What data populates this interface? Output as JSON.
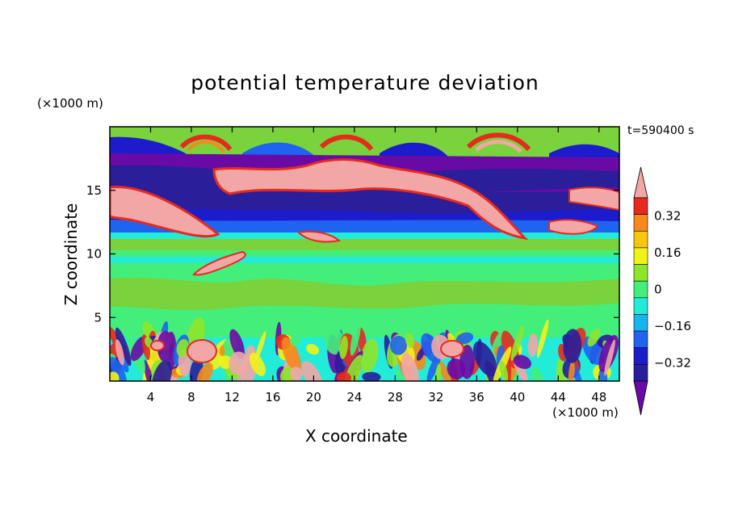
{
  "chart_data": {
    "type": "heatmap",
    "title": "potential temperature deviation",
    "time_label": "t=590400 s",
    "xlabel": "X coordinate",
    "ylabel": "Z coordinate",
    "x_unit": "(×1000 m)",
    "y_unit": "(×1000 m)",
    "xlim": [
      0,
      50
    ],
    "ylim": [
      0,
      20
    ],
    "x_ticks": [
      4,
      8,
      12,
      16,
      20,
      24,
      28,
      32,
      36,
      40,
      44,
      48
    ],
    "y_ticks": [
      5,
      10,
      15
    ],
    "colorbar": {
      "levels": [
        -0.48,
        -0.4,
        -0.32,
        -0.24,
        -0.16,
        -0.08,
        0,
        0.08,
        0.16,
        0.24,
        0.32,
        0.4,
        0.48
      ],
      "labels": [
        "0.32",
        "0.16",
        "0",
        "−0.16",
        "−0.32"
      ],
      "label_values": [
        0.32,
        0.16,
        0,
        -0.16,
        -0.32
      ],
      "colors": [
        "#6a0aa6",
        "#2a1e9a",
        "#1c1ccc",
        "#1e64f0",
        "#18b4ee",
        "#22ecd8",
        "#44ee7a",
        "#8ee62a",
        "#f2f21a",
        "#f6c70e",
        "#f6881c",
        "#e62a1e",
        "#f2a6a6"
      ],
      "extend": "both"
    },
    "colors": {
      "background": "#7ad23c",
      "upper_band": "#6a0aa6",
      "mid_band": "#44ee7a",
      "warm_blob": "#f2a6a6"
    }
  }
}
